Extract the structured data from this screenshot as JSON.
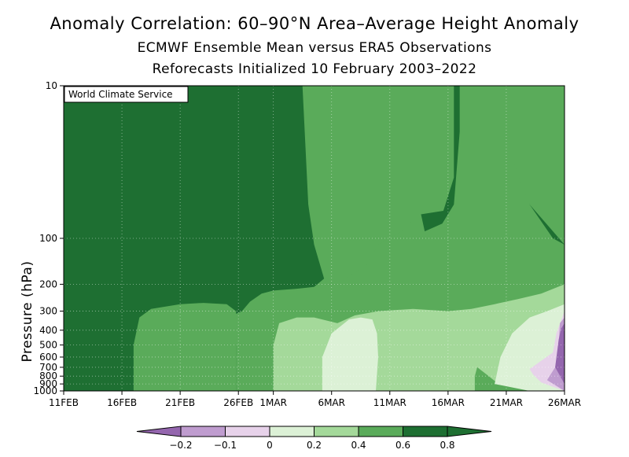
{
  "title": "Anomaly Correlation: 60–90°N Area–Average Height Anomaly",
  "subtitle": "ECMWF Ensemble Mean versus ERA5 Observations",
  "subtitle2": "Reforecasts Initialized 10 February 2003–2022",
  "watermark": "World Climate Service",
  "colors": {
    "lt_0.8": "#1e6f32",
    "0.6_0.8": "#1e6f32",
    "ge_0.8": "#1e6f32",
    "0.4_0.6": "#5aab5a",
    "0.2_0.4": "#a4d99a",
    "0_0.2": "#dcf1d6",
    "m0.1_0": "#e7d2ea",
    "m0.2_m0.1": "#bf9ccf",
    "lt_m0.2": "#9466ae",
    "dark": "#1e6f32"
  },
  "chart_data": {
    "type": "heatmap",
    "title": "Anomaly Correlation: 60–90°N Area–Average Height Anomaly",
    "xlabel": "",
    "ylabel": "Pressure (hPa)",
    "y_scale": "log",
    "ylim": [
      1000,
      10
    ],
    "x_ticks": [
      "11FEB",
      "16FEB",
      "21FEB",
      "26FEB",
      "1MAR",
      "6MAR",
      "11MAR",
      "16MAR",
      "21MAR",
      "26MAR"
    ],
    "x_tick_days": [
      0,
      5,
      10,
      15,
      18,
      23,
      28,
      33,
      38,
      43
    ],
    "y_ticks": [
      10,
      100,
      200,
      300,
      400,
      500,
      600,
      700,
      800,
      900,
      1000
    ],
    "grid": true,
    "colorbar": {
      "boundaries": [
        -0.2,
        -0.1,
        0,
        0.2,
        0.4,
        0.6,
        0.8
      ],
      "labels": [
        "−0.2",
        "−0.1",
        "0",
        "0.2",
        "0.4",
        "0.6",
        "0.8"
      ],
      "colors": [
        "#9466ae",
        "#bf9ccf",
        "#e7d2ea",
        "#dcf1d6",
        "#a4d99a",
        "#5aab5a",
        "#1e6f32",
        "#1e6f32"
      ]
    },
    "regions": [
      {
        "level": "0.6–0.8",
        "color": "#5aab5a",
        "description": "green band from 26FEB–26MAR, 200–300 hPa extending to 10 hPa near 2MAR–5MAR and near 26MAR"
      },
      {
        "level": "0.4–0.6",
        "color": "#a4d99a",
        "description": "mid-troposphere 1MAR–26MAR, 300–1000 hPa"
      },
      {
        "level": "0.2–0.4",
        "color": "#dcf1d6",
        "description": "6MAR–9MAR and 21MAR–26MAR lower troposphere"
      },
      {
        "level": "below 0",
        "color": "#9466ae",
        "description": "24–26MAR, 300–1000 hPa"
      }
    ]
  }
}
